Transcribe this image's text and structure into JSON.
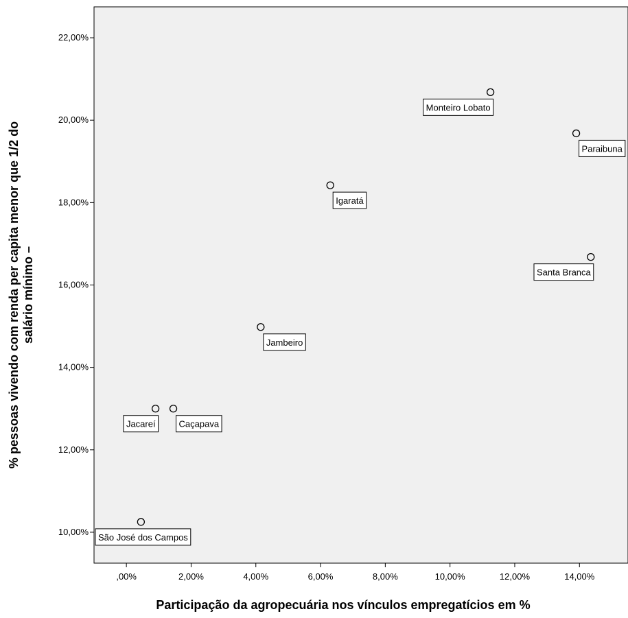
{
  "chart_data": {
    "type": "scatter",
    "xlabel": "Participação da agropecuária nos vínculos empregatícios em %",
    "ylabel_lines": [
      "% pessoas vivendo com renda per capita menor que 1/2 do",
      "salário mínimo –"
    ],
    "xlim": [
      -1.0,
      15.5
    ],
    "ylim": [
      9.25,
      22.75
    ],
    "x_ticks": [
      0,
      2,
      4,
      6,
      8,
      10,
      12,
      14
    ],
    "x_tick_labels": [
      ",00%",
      "2,00%",
      "4,00%",
      "6,00%",
      "8,00%",
      "10,00%",
      "12,00%",
      "14,00%"
    ],
    "y_ticks": [
      10,
      12,
      14,
      16,
      18,
      20,
      22
    ],
    "y_tick_labels": [
      "10,00%",
      "12,00%",
      "14,00%",
      "16,00%",
      "18,00%",
      "20,00%",
      "22,00%"
    ],
    "grid": false,
    "plot_background": "#f0f0f0",
    "marker_color": "#000000",
    "points": [
      {
        "label": "São José dos Campos",
        "x": 0.45,
        "y": 10.25,
        "label_pos": "below-left"
      },
      {
        "label": "Jacareí",
        "x": 0.9,
        "y": 13.0,
        "label_pos": "below-left"
      },
      {
        "label": "Caçapava",
        "x": 1.45,
        "y": 13.0,
        "label_pos": "below-right"
      },
      {
        "label": "Jambeiro",
        "x": 4.15,
        "y": 14.98,
        "label_pos": "below-right"
      },
      {
        "label": "Igaratá",
        "x": 6.3,
        "y": 18.42,
        "label_pos": "below-right"
      },
      {
        "label": "Monteiro Lobato",
        "x": 11.25,
        "y": 20.68,
        "label_pos": "below-left"
      },
      {
        "label": "Paraibuna",
        "x": 13.9,
        "y": 19.68,
        "label_pos": "below-right"
      },
      {
        "label": "Santa Branca",
        "x": 14.35,
        "y": 16.68,
        "label_pos": "below-left"
      }
    ]
  }
}
